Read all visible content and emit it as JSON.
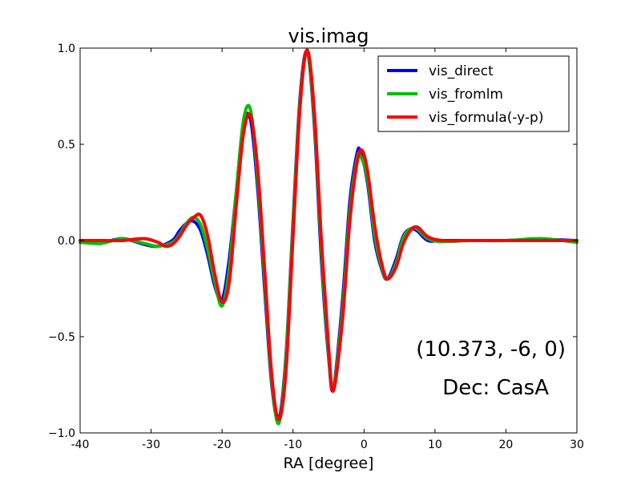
{
  "chart_data": {
    "type": "line",
    "title": "vis.imag",
    "xlabel": "RA [degree]",
    "ylabel": "",
    "xlim": [
      -40,
      30
    ],
    "ylim": [
      -1.0,
      1.0
    ],
    "xticks": [
      -40,
      -30,
      -20,
      -10,
      0,
      10,
      20,
      30
    ],
    "xtick_labels": [
      "-40",
      "-30",
      "-20",
      "-10",
      "0",
      "10",
      "20",
      "30"
    ],
    "yticks": [
      -1.0,
      -0.5,
      0.0,
      0.5,
      1.0
    ],
    "ytick_labels": [
      "−1.0",
      "−0.5",
      "0.0",
      "0.5",
      "1.0"
    ],
    "grid": false,
    "legend_position": "top-right",
    "annotations": [
      "(10.373, -6, 0)",
      "Dec: CasA"
    ],
    "series": [
      {
        "name": "vis_direct",
        "color": "#0000ff",
        "x": [
          -40,
          -37,
          -34,
          -31,
          -29,
          -27,
          -26,
          -25,
          -24,
          -23,
          -22,
          -21,
          -20,
          -19,
          -18,
          -17,
          -16,
          -15,
          -14,
          -13,
          -12,
          -11,
          -10,
          -9,
          -8,
          -7,
          -6,
          -5,
          -4.3,
          -3,
          -2,
          -1,
          -0.5,
          0.5,
          1.5,
          2.5,
          3.3,
          4.5,
          5.5,
          6.5,
          7.5,
          9,
          11,
          15,
          20,
          25,
          30
        ],
        "y": [
          0.0,
          -0.01,
          0.01,
          -0.02,
          -0.03,
          0.0,
          0.05,
          0.09,
          0.1,
          0.05,
          -0.08,
          -0.24,
          -0.31,
          -0.1,
          0.25,
          0.6,
          0.63,
          0.28,
          -0.25,
          -0.75,
          -0.93,
          -0.6,
          0.1,
          0.75,
          0.98,
          0.6,
          -0.1,
          -0.6,
          -0.77,
          -0.3,
          0.2,
          0.45,
          0.46,
          0.3,
          0.0,
          -0.15,
          -0.2,
          -0.1,
          0.02,
          0.06,
          0.05,
          0.0,
          0.0,
          0.0,
          0.0,
          0.005,
          0.0
        ]
      },
      {
        "name": "vis_fromlm",
        "color": "#00c000",
        "x": [
          -40,
          -37,
          -34,
          -31,
          -29,
          -27,
          -26,
          -25,
          -24,
          -23,
          -22,
          -21,
          -20,
          -19,
          -18,
          -17,
          -16,
          -15,
          -14,
          -13,
          -12,
          -11,
          -10,
          -9,
          -8,
          -7,
          -6,
          -5,
          -4.3,
          -3,
          -2,
          -1,
          -0.5,
          0.5,
          1.5,
          2.5,
          3.3,
          4.5,
          5.5,
          6.5,
          7.5,
          9,
          11,
          15,
          20,
          25,
          30
        ],
        "y": [
          -0.01,
          -0.015,
          0.01,
          -0.015,
          -0.03,
          -0.01,
          0.03,
          0.09,
          0.12,
          0.08,
          -0.05,
          -0.22,
          -0.34,
          -0.15,
          0.25,
          0.62,
          0.68,
          0.33,
          -0.2,
          -0.73,
          -0.95,
          -0.62,
          0.08,
          0.73,
          0.98,
          0.63,
          -0.05,
          -0.58,
          -0.77,
          -0.35,
          0.15,
          0.42,
          0.44,
          0.32,
          0.03,
          -0.14,
          -0.2,
          -0.12,
          0.01,
          0.06,
          0.06,
          0.01,
          -0.005,
          0.0,
          0.0,
          0.01,
          -0.01
        ]
      },
      {
        "name": "vis_formula(-y-p)",
        "color": "#ff0000",
        "x": [
          -40,
          -37,
          -34,
          -31,
          -29,
          -28,
          -27,
          -26,
          -25,
          -24,
          -23,
          -22,
          -21,
          -20,
          -19,
          -18,
          -17,
          -16,
          -15,
          -14,
          -13,
          -12,
          -11,
          -10,
          -9,
          -8,
          -7,
          -6,
          -5,
          -4.3,
          -3,
          -2,
          -1,
          -0.3,
          0.5,
          1.5,
          2.5,
          3.3,
          4.5,
          5.5,
          6.5,
          7.5,
          9,
          11,
          15,
          20,
          25,
          30
        ],
        "y": [
          0.0,
          0.0,
          0.0,
          0.01,
          -0.01,
          -0.03,
          -0.02,
          0.02,
          0.08,
          0.12,
          0.13,
          0.02,
          -0.18,
          -0.32,
          -0.22,
          0.18,
          0.55,
          0.65,
          0.38,
          -0.15,
          -0.7,
          -0.93,
          -0.68,
          0.02,
          0.7,
          0.99,
          0.67,
          0.0,
          -0.55,
          -0.78,
          -0.4,
          0.1,
          0.4,
          0.47,
          0.36,
          0.08,
          -0.12,
          -0.2,
          -0.14,
          -0.02,
          0.05,
          0.07,
          0.02,
          0.0,
          0.0,
          0.0,
          0.0,
          0.0
        ]
      }
    ]
  }
}
